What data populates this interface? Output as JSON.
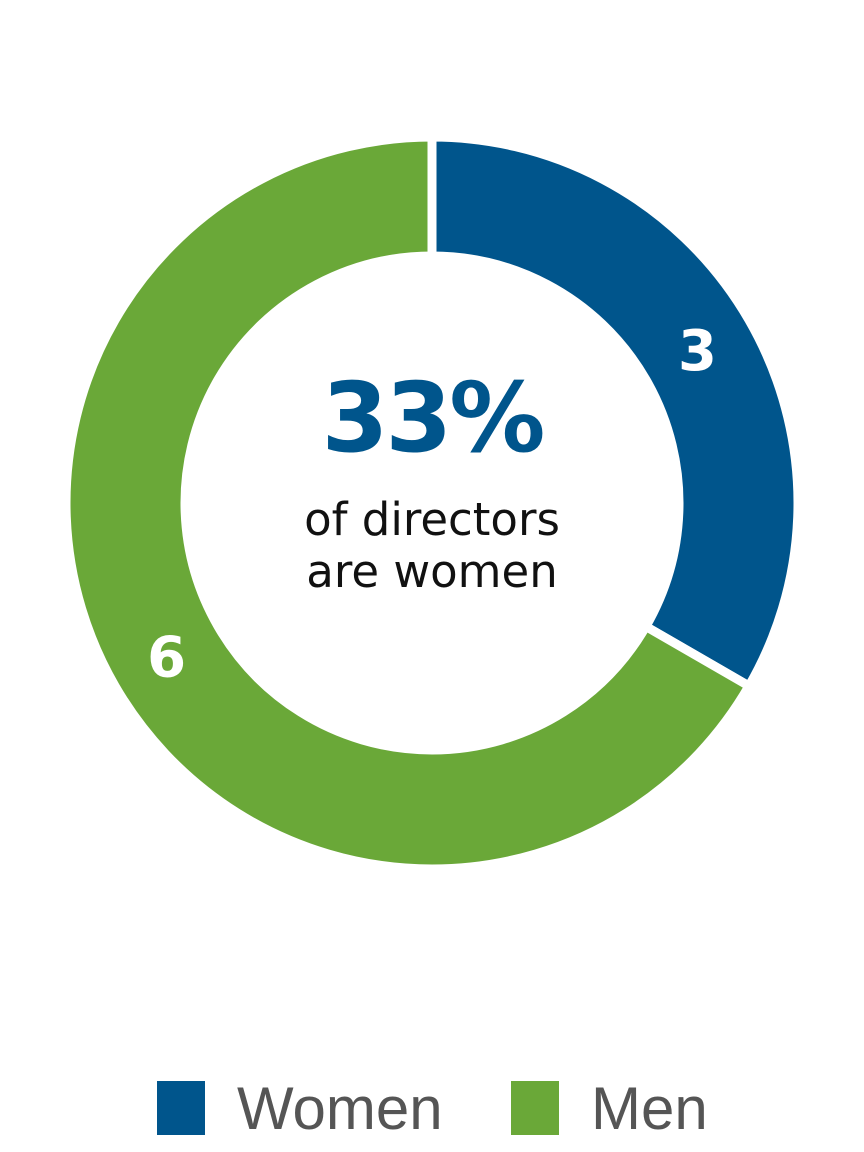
{
  "chart_data": {
    "type": "pie",
    "donut": true,
    "categories": [
      "Women",
      "Men"
    ],
    "values": [
      3,
      6
    ],
    "colors": [
      "#00558C",
      "#6AA838"
    ],
    "data_labels": [
      "3",
      "6"
    ],
    "center_text": {
      "value": "33%",
      "caption_line1": "of directors",
      "caption_line2": "are women"
    },
    "legend": {
      "placement": "bottom",
      "entries": [
        "Women",
        "Men"
      ]
    }
  }
}
